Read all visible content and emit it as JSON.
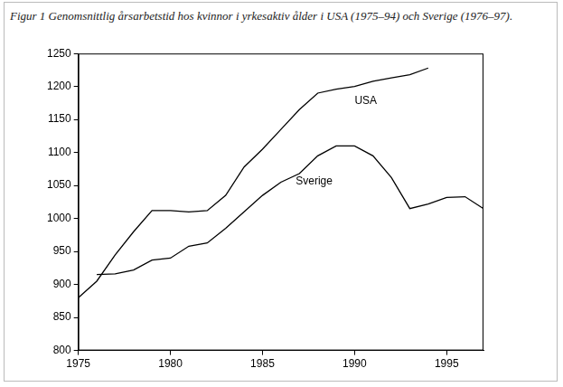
{
  "chart_data": {
    "type": "line",
    "title": "Figur 1 Genomsnittlig årsarbetstid hos kvinnor i yrkesaktiv ålder i USA (1975–94) och Sverige (1976–97).",
    "x": [
      1975,
      1976,
      1977,
      1978,
      1979,
      1980,
      1981,
      1982,
      1983,
      1984,
      1985,
      1986,
      1987,
      1988,
      1989,
      1990,
      1991,
      1992,
      1993,
      1994,
      1995,
      1996,
      1997
    ],
    "series": [
      {
        "name": "USA",
        "color": "#000000",
        "values": [
          880,
          905,
          945,
          980,
          1012,
          1012,
          1010,
          1012,
          1035,
          1078,
          1105,
          1135,
          1165,
          1190,
          1196,
          1200,
          1208,
          1213,
          1218,
          1228,
          null,
          null,
          null
        ]
      },
      {
        "name": "Sverige",
        "color": "#000000",
        "values": [
          null,
          915,
          916,
          922,
          937,
          940,
          958,
          963,
          985,
          1010,
          1035,
          1055,
          1068,
          1095,
          1110,
          1110,
          1095,
          1062,
          1015,
          1022,
          1032,
          1033,
          1015
        ]
      }
    ],
    "xlim": [
      1975,
      1997
    ],
    "xticks": [
      1975,
      1980,
      1985,
      1990,
      1995
    ],
    "ylim": [
      800,
      1250
    ],
    "yticks": [
      800,
      850,
      900,
      950,
      1000,
      1050,
      1100,
      1150,
      1200,
      1250
    ],
    "grid": false
  }
}
